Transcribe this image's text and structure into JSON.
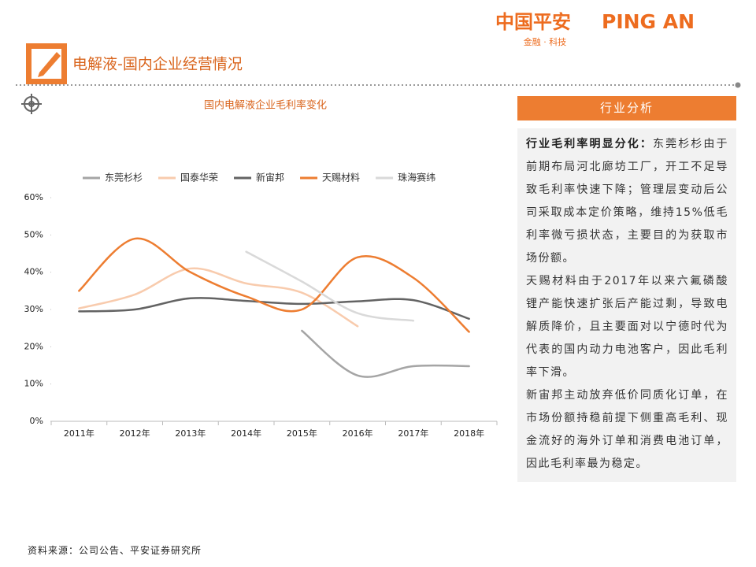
{
  "header": {
    "title": "电解液-国内企业经营情况",
    "logo_cn": "中国平安",
    "logo_en": "PING AN",
    "tagline": "金融 · 科技"
  },
  "chart_data": {
    "type": "line",
    "title": "国内电解液企业毛利率变化",
    "categories": [
      "2011年",
      "2012年",
      "2013年",
      "2014年",
      "2015年",
      "2016年",
      "2017年",
      "2018年"
    ],
    "series": [
      {
        "name": "东莞杉杉",
        "color": "#a5a5a5",
        "values": [
          null,
          null,
          null,
          null,
          24.3,
          12.3,
          14.8,
          14.8
        ]
      },
      {
        "name": "国泰华荣",
        "color": "#f8cbad",
        "values": [
          30.3,
          34,
          41,
          37,
          34.5,
          25.5,
          null,
          null
        ]
      },
      {
        "name": "新宙邦",
        "color": "#636363",
        "values": [
          29.5,
          30,
          33,
          32.3,
          31.5,
          32.2,
          32.5,
          27.5
        ]
      },
      {
        "name": "天赐材料",
        "color": "#ed7d31",
        "values": [
          35,
          49,
          40,
          33.5,
          30,
          44,
          38.5,
          24
        ]
      },
      {
        "name": "珠海赛纬",
        "color": "#d9d9d9",
        "values": [
          null,
          null,
          null,
          45.5,
          37.5,
          29,
          27,
          null
        ]
      }
    ],
    "ylim": [
      0,
      60
    ],
    "yticks": [
      {
        "value": 0,
        "label": "0%"
      },
      {
        "value": 10,
        "label": "10%"
      },
      {
        "value": 20,
        "label": "20%"
      },
      {
        "value": 30,
        "label": "30%"
      },
      {
        "value": 40,
        "label": "40%"
      },
      {
        "value": 50,
        "label": "50%"
      },
      {
        "value": 60,
        "label": "60%"
      }
    ],
    "grid": false,
    "smooth": true,
    "legend": "top"
  },
  "panel": {
    "title": "行业分析",
    "paragraphs": [
      {
        "lead": "行业毛利率明显分化：",
        "text": "东莞杉杉由于前期布局河北廊坊工厂，开工不足导致毛利率快速下降；管理层变动后公司采取成本定价策略，维持15%低毛利率微亏损状态，主要目的为获取市场份额。"
      },
      {
        "text": "天赐材料由于2017年以来六氟磷酸锂产能快速扩张后产能过剩，导致电解质降价，且主要面对以宁德时代为代表的国内动力电池客户，因此毛利率下滑。"
      },
      {
        "text": "新宙邦主动放弃低价同质化订单，在市场份额持稳前提下侧重高毛利、现金流好的海外订单和消费电池订单，因此毛利率最为稳定。"
      }
    ]
  },
  "source": "资料来源：公司公告、平安证券研究所"
}
